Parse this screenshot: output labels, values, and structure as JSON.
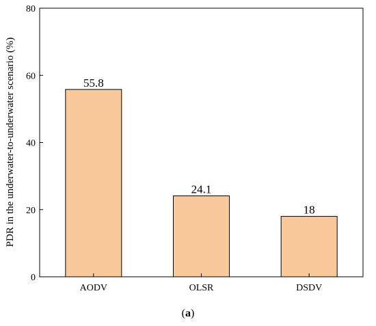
{
  "chart_data": {
    "type": "bar",
    "categories": [
      "AODV",
      "OLSR",
      "DSDV"
    ],
    "values": [
      55.8,
      24.1,
      18
    ],
    "data_labels": [
      "55.8",
      "24.1",
      "18"
    ],
    "ylabel": "PDR in the underwater-to-underwater scenario (%)",
    "xlabel": "",
    "ylim": [
      0,
      80
    ],
    "yticks": [
      0,
      20,
      40,
      60,
      80
    ],
    "bar_color": "#f9c89b",
    "bar_edge_color": "#000000",
    "grid": false,
    "legend": "none"
  },
  "caption": {
    "open": "(",
    "letter": "a",
    "close": ")"
  }
}
